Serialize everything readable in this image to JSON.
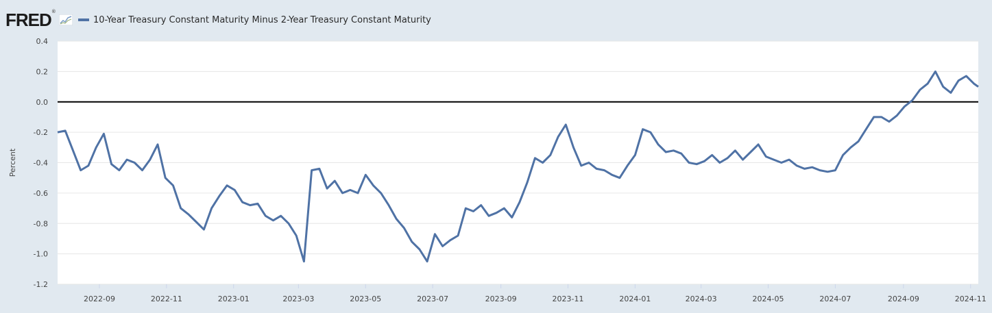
{
  "logo": "FRED",
  "legend": {
    "label": "10-Year Treasury Constant Maturity Minus 2-Year Treasury Constant Maturity",
    "color": "#4f72a5"
  },
  "colors": {
    "background": "#e1e9f0",
    "plot_area": "#ffffff",
    "gridline": "#e6e6e6",
    "zero_line": "#000000",
    "series": "#4f72a5"
  },
  "chart_data": {
    "type": "line",
    "title": "",
    "xlabel": "",
    "ylabel": "Percent",
    "ylim": [
      -1.2,
      0.4
    ],
    "xlim": [
      "2022-07-25",
      "2024-11-08"
    ],
    "yticks": [
      "0.4",
      "0.2",
      "0.0",
      "-0.2",
      "-0.4",
      "-0.6",
      "-0.8",
      "-1.0",
      "-1.2"
    ],
    "xticks": [
      "2022-09",
      "2022-11",
      "2023-01",
      "2023-03",
      "2023-05",
      "2023-07",
      "2023-09",
      "2023-11",
      "2024-01",
      "2024-03",
      "2024-05",
      "2024-07",
      "2024-09",
      "2024-11"
    ],
    "grid": true,
    "reference_line": 0.0,
    "legend_position": "top-left",
    "series": [
      {
        "name": "10-Year Treasury Constant Maturity Minus 2-Year Treasury Constant Maturity",
        "x": [
          "2022-07-25",
          "2022-08-01",
          "2022-08-08",
          "2022-08-15",
          "2022-08-22",
          "2022-08-29",
          "2022-09-05",
          "2022-09-12",
          "2022-09-19",
          "2022-09-26",
          "2022-10-03",
          "2022-10-10",
          "2022-10-17",
          "2022-10-24",
          "2022-10-31",
          "2022-11-07",
          "2022-11-14",
          "2022-11-21",
          "2022-11-28",
          "2022-12-05",
          "2022-12-12",
          "2022-12-19",
          "2022-12-26",
          "2023-01-02",
          "2023-01-09",
          "2023-01-16",
          "2023-01-23",
          "2023-01-30",
          "2023-02-06",
          "2023-02-13",
          "2023-02-20",
          "2023-02-27",
          "2023-03-06",
          "2023-03-13",
          "2023-03-20",
          "2023-03-27",
          "2023-04-03",
          "2023-04-10",
          "2023-04-17",
          "2023-04-24",
          "2023-05-01",
          "2023-05-08",
          "2023-05-15",
          "2023-05-22",
          "2023-05-29",
          "2023-06-05",
          "2023-06-12",
          "2023-06-19",
          "2023-06-26",
          "2023-07-03",
          "2023-07-10",
          "2023-07-17",
          "2023-07-24",
          "2023-07-31",
          "2023-08-07",
          "2023-08-14",
          "2023-08-21",
          "2023-08-28",
          "2023-09-04",
          "2023-09-11",
          "2023-09-18",
          "2023-09-25",
          "2023-10-02",
          "2023-10-09",
          "2023-10-16",
          "2023-10-23",
          "2023-10-30",
          "2023-11-06",
          "2023-11-13",
          "2023-11-20",
          "2023-11-27",
          "2023-12-04",
          "2023-12-11",
          "2023-12-18",
          "2023-12-25",
          "2024-01-01",
          "2024-01-08",
          "2024-01-15",
          "2024-01-22",
          "2024-01-29",
          "2024-02-05",
          "2024-02-12",
          "2024-02-19",
          "2024-02-26",
          "2024-03-04",
          "2024-03-11",
          "2024-03-18",
          "2024-03-25",
          "2024-04-01",
          "2024-04-08",
          "2024-04-15",
          "2024-04-22",
          "2024-04-29",
          "2024-05-06",
          "2024-05-13",
          "2024-05-20",
          "2024-05-27",
          "2024-06-03",
          "2024-06-10",
          "2024-06-17",
          "2024-06-24",
          "2024-07-01",
          "2024-07-08",
          "2024-07-15",
          "2024-07-22",
          "2024-07-29",
          "2024-08-05",
          "2024-08-12",
          "2024-08-19",
          "2024-08-26",
          "2024-09-02",
          "2024-09-09",
          "2024-09-16",
          "2024-09-23",
          "2024-09-30",
          "2024-10-07",
          "2024-10-14",
          "2024-10-21",
          "2024-10-28",
          "2024-11-04",
          "2024-11-08"
        ],
        "values": [
          -0.2,
          -0.19,
          -0.32,
          -0.45,
          -0.42,
          -0.3,
          -0.21,
          -0.41,
          -0.45,
          -0.38,
          -0.4,
          -0.45,
          -0.38,
          -0.28,
          -0.5,
          -0.55,
          -0.7,
          -0.74,
          -0.79,
          -0.84,
          -0.7,
          -0.62,
          -0.55,
          -0.58,
          -0.66,
          -0.68,
          -0.67,
          -0.75,
          -0.78,
          -0.75,
          -0.8,
          -0.88,
          -1.05,
          -0.45,
          -0.44,
          -0.57,
          -0.52,
          -0.6,
          -0.58,
          -0.6,
          -0.48,
          -0.55,
          -0.6,
          -0.68,
          -0.77,
          -0.83,
          -0.92,
          -0.97,
          -1.05,
          -0.87,
          -0.95,
          -0.91,
          -0.88,
          -0.7,
          -0.72,
          -0.68,
          -0.75,
          -0.73,
          -0.7,
          -0.76,
          -0.66,
          -0.53,
          -0.37,
          -0.4,
          -0.35,
          -0.23,
          -0.15,
          -0.3,
          -0.42,
          -0.4,
          -0.44,
          -0.45,
          -0.48,
          -0.5,
          -0.42,
          -0.35,
          -0.18,
          -0.2,
          -0.28,
          -0.33,
          -0.32,
          -0.34,
          -0.4,
          -0.41,
          -0.39,
          -0.35,
          -0.4,
          -0.37,
          -0.32,
          -0.38,
          -0.33,
          -0.28,
          -0.36,
          -0.38,
          -0.4,
          -0.38,
          -0.42,
          -0.44,
          -0.43,
          -0.45,
          -0.46,
          -0.45,
          -0.35,
          -0.3,
          -0.26,
          -0.18,
          -0.1,
          -0.1,
          -0.13,
          -0.09,
          -0.03,
          0.01,
          0.08,
          0.12,
          0.2,
          0.1,
          0.06,
          0.14,
          0.17,
          0.12,
          0.1
        ]
      }
    ]
  }
}
